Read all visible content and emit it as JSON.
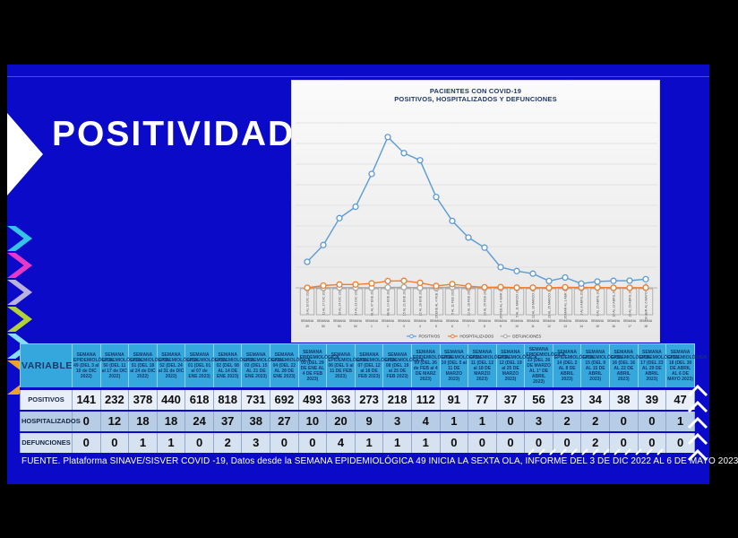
{
  "slide": {
    "title": "POSITIVIDAD",
    "footer": "FUENTE. Plataforma SINAVE/SISVER COVID -19, Datos desde la SEMANA EPIDEMIOLÓGICA 49 INICIA LA SEXTA OLA, INFORME DEL 3 DE DIC 2022 AL 6 DE MAYO  2023"
  },
  "chart_data": {
    "type": "line",
    "title": "PACIENTES CON COVID-19",
    "subtitle": "POSITIVOS, HOSPITALIZADOS Y DEFUNCIONES",
    "x_axis_group_label": "SEMANA",
    "week_numbers": [
      "49",
      "50",
      "51",
      "52",
      "1",
      "2",
      "3",
      "4",
      "5",
      "6",
      "7",
      "8",
      "9",
      "10",
      "11",
      "12",
      "13",
      "14",
      "15",
      "16",
      "17",
      "18"
    ],
    "category_dates": [
      "3 AL 10 DIC 2022",
      "11 AL 17 DIC 2022",
      "18 AL 24 DIC 2022",
      "24 AL 31 DIC 2022",
      "01 AL 07 ENE 2023",
      "08 AL 14 ENE 2023",
      "15 AL 21 ENE 2023",
      "22 AL 28 ENE 2023",
      "29 ENE AL 4 FEB 2023",
      "5 AL 11 FEB 2023",
      "12 AL 18 FEB 2023",
      "19 AL 25 FEB 2023",
      "26 FEB AL 4 MAR 2023",
      "5 AL 11 MARZO 2023",
      "12 AL 18 MARZO 2023",
      "19 AL 25 MARZO 2023",
      "26 MAR AL 1 ABR 2023",
      "2 AL 8 ABRIL 2023",
      "9 AL 15 ABRIL 2023",
      "16 AL 22 ABRIL 2023",
      "23 AL 29 ABRIL 2023",
      "30 ABR AL 6 MAYO 2023"
    ],
    "series": [
      {
        "name": "POSITIVOS",
        "color": "#5b9bd5",
        "values": [
          141,
          232,
          378,
          440,
          618,
          818,
          731,
          692,
          493,
          363,
          273,
          218,
          112,
          91,
          77,
          37,
          56,
          23,
          34,
          38,
          39,
          47
        ]
      },
      {
        "name": "HOSPITALIZADOS",
        "color": "#ed7d31",
        "values": [
          0,
          12,
          18,
          18,
          24,
          37,
          38,
          27,
          10,
          20,
          9,
          3,
          4,
          1,
          1,
          0,
          3,
          2,
          2,
          0,
          0,
          1
        ]
      },
      {
        "name": "DEFUNCIONES",
        "color": "#a6a6a6",
        "values": [
          0,
          0,
          1,
          1,
          0,
          2,
          3,
          0,
          0,
          4,
          1,
          1,
          1,
          0,
          0,
          0,
          0,
          0,
          2,
          0,
          0,
          0
        ]
      }
    ],
    "ylim": [
      0,
      900
    ],
    "grid": true,
    "legend_position": "bottom"
  },
  "table": {
    "variable_header": "VARIABLE",
    "week_headers": [
      "SEMANA EPIDEMIOLÓGICA 49 (DEL 3 al 10 de DIC 2022)",
      "SEMANA EPIDEMIOLÓGICA 50 (DEL 11 al 17 de DIC 2022)",
      "SEMANA EPIDEMIOLÓGICA 51 (DEL 18 al 24 de DIC 2022)",
      "SEMANA EPIDEMIOLÓGICA 52 (DEL 24 al 31 de DIC 2022)",
      "SEMANA EPIDEMIOLÓGICA 01 (DEL 01 al 07 de ENE 2023)",
      "SEMANA EPIDEMIOLÓGICA 02 (DEL 08 AL 14 DE ENE 2023)",
      "SEMANA EPIDEMIOLÓGICA 03 (DEL 15 AL 21 DE ENE 2023)",
      "SEMANA EPIDEMIOLÓGICA 04 (DEL 22 AL 28 DE ENE 2023)",
      "SEMANA EPIDEMIOLÓGICA 05 (DEL 29 DE ENE AL 4 DE FEB 2023)",
      "SEMANA EPIDEMIOLÓGICA 06 (DEL 5 al 11 DE FEB 2023)",
      "SEMANA EPIDEMIOLÓGICA 07 (DEL 12 al 18 DE FEB 2023)",
      "SEMANA EPIDEMIOLÓGICA 08 (DEL 19 al 25 DE FEB 2023)",
      "SEMANA EPIDEMIOLÓGICA 09 (DEL 26 de FEB al 4 DE MARZ 2023)",
      "SEMANA EPIDEMIOLÓGICA 10 (DEL 5 al 11 DE MARZO 2023)",
      "SEMANA EPIDEMIOLÓGICA 11 (DEL 12 al 18 DE MARZO 2023)",
      "SEMANA EPIDEMIOLÓGICA 12 (DEL 19 al 25 DE MARZO 2023)",
      "SEMANA EPIDEMIOLÓGICA 13 (DEL 26 DE MARZO AL 1° DE ABRIL 2023)",
      "SEMANA EPIDEMIOLÓGICA 14 (DEL 2 AL 8 DE ABRIL 2023)",
      "SEMANA EPIDEMIOLÓGICA 15 (DEL 9 AL 15 DE ABRIL 2023)",
      "SEMANA EPIDEMIOLÓGICA 16 (DEL 16 AL 22 DE ABRIL 2023)",
      "SEMANA EPIDEMIOLÓGICA 17 (DEL 23 AL 29 DE ABRIL 2023)",
      "SEMANA EPIDEMIOLÓGICA 18 (DEL 30 DE ABRIL AL 6 DE MAYO 2023)"
    ],
    "rows": [
      {
        "label": "POSITIVOS",
        "values": [
          141,
          232,
          378,
          440,
          618,
          818,
          731,
          692,
          493,
          363,
          273,
          218,
          112,
          91,
          77,
          37,
          56,
          23,
          34,
          38,
          39,
          47
        ]
      },
      {
        "label": "HOSPITALIZADOS",
        "values": [
          0,
          12,
          18,
          18,
          24,
          37,
          38,
          27,
          10,
          20,
          9,
          3,
          4,
          1,
          1,
          0,
          3,
          2,
          2,
          0,
          0,
          1
        ]
      },
      {
        "label": "DEFUNCIONES",
        "values": [
          0,
          0,
          1,
          1,
          0,
          2,
          3,
          0,
          0,
          4,
          1,
          1,
          1,
          0,
          0,
          0,
          0,
          0,
          2,
          0,
          0,
          0
        ]
      }
    ]
  },
  "colors": {
    "slide_bg": "#0a0ac8",
    "table_header_bg": "#35a7dd",
    "table_header_text": "#17386a",
    "row_bgs": [
      "#e9eff8",
      "#b7cce5",
      "#d6e2f0"
    ],
    "series_blue": "#5b9bd5",
    "series_orange": "#ed7d31",
    "series_gray": "#a6a6a6"
  },
  "decor": {
    "chevron_colors": [
      "#35c4e8",
      "#e838c8",
      "#b8b2dc",
      "#b2d234",
      "#86dff0",
      "#f0a02c"
    ]
  }
}
